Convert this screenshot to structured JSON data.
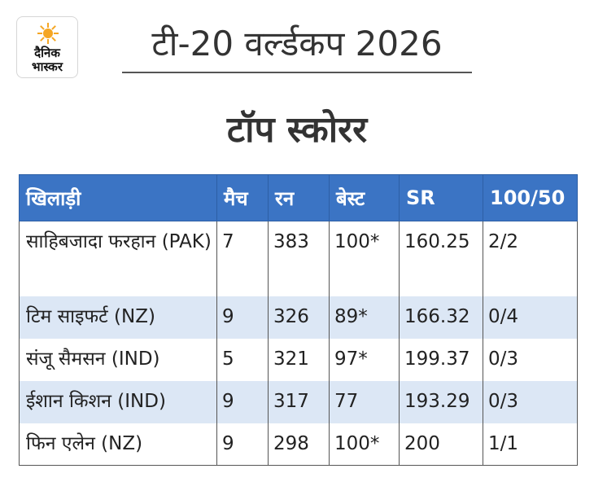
{
  "logo": {
    "line1": "दैनिक",
    "line2": "भास्कर",
    "icon": "sun-logo-icon",
    "color": "#f5a623"
  },
  "header": {
    "title": "टी-20 वर्ल्डकप 2026",
    "subtitle": "टॉप स्कोरर"
  },
  "table": {
    "columns": [
      "खिलाड़ी",
      "मैच",
      "रन",
      "बेस्ट",
      "SR",
      "100/50"
    ],
    "rows": [
      [
        "साहिबजादा फरहान (PAK)",
        "7",
        "383",
        "100*",
        "160.25",
        "2/2"
      ],
      [
        "टिम साइफर्ट (NZ)",
        "9",
        "326",
        "89*",
        "166.32",
        "0/4"
      ],
      [
        "संजू सैमसन (IND)",
        "5",
        "321",
        "97*",
        "199.37",
        "0/3"
      ],
      [
        "ईशान किशन (IND)",
        "9",
        "317",
        "77",
        "193.29",
        "0/3"
      ],
      [
        "फिन एलेन (NZ)",
        "9",
        "298",
        "100*",
        "200",
        "1/1"
      ]
    ],
    "header_color": "#3b74c4",
    "stripe_color": "#dce7f5"
  }
}
